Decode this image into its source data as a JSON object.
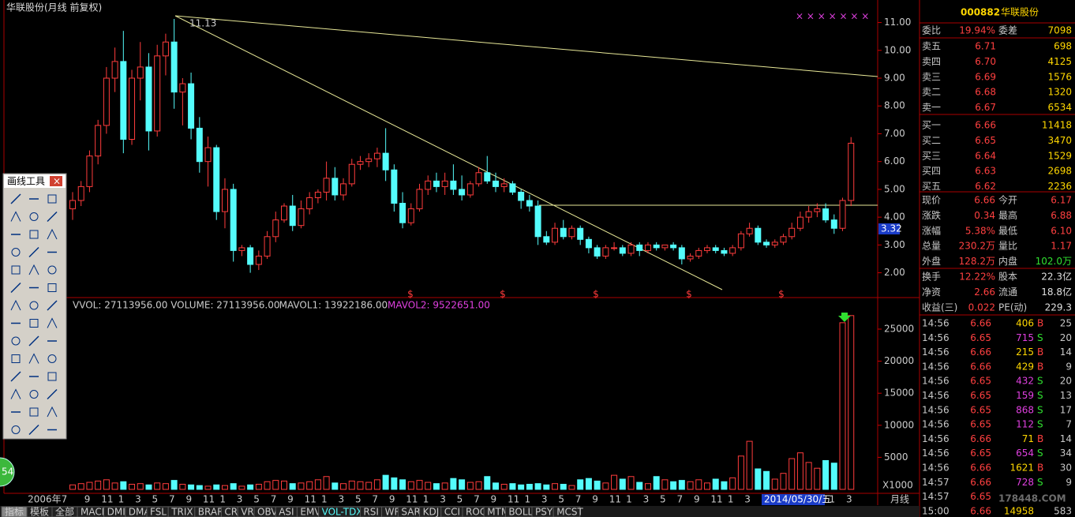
{
  "title": "华联股份(月线 前复权)",
  "chart_data": [
    {
      "type": "candlestick",
      "open": [
        4.3,
        4.6,
        5.1,
        6.2,
        7.3,
        9.0,
        9.6,
        6.8,
        9.0,
        9.4,
        7.1,
        9.8,
        10.3,
        8.5,
        8.8,
        7.2,
        6.0,
        6.5,
        4.2,
        5.0,
        2.8,
        2.9,
        2.3,
        2.6,
        3.3,
        3.9,
        4.4,
        3.7,
        4.3,
        4.7,
        4.9,
        5.4,
        4.8,
        5.2,
        5.9,
        6.0,
        6.1,
        6.3,
        5.7,
        4.5,
        3.8,
        4.3,
        5.0,
        5.3,
        5.1,
        5.3,
        5.0,
        4.8,
        5.2,
        5.6,
        5.3,
        5.1,
        5.2,
        4.9,
        4.6,
        4.4,
        3.3,
        3.1,
        3.6,
        3.3,
        3.6,
        3.2,
        2.9,
        2.6,
        2.9,
        2.9,
        2.7,
        3.0,
        2.8,
        3.0,
        2.9,
        3.0,
        2.9,
        2.5,
        2.6,
        2.8,
        2.9,
        2.8,
        2.7,
        2.9,
        3.4,
        3.6,
        3.1,
        3.0,
        3.1,
        3.3,
        3.6,
        4.0,
        4.2,
        4.3,
        3.9,
        3.6,
        4.6
      ],
      "high": [
        4.9,
        5.3,
        6.4,
        7.5,
        9.4,
        10.1,
        10.7,
        9.3,
        10.3,
        9.9,
        10.2,
        10.6,
        11.13,
        9.0,
        9.2,
        7.6,
        6.9,
        6.6,
        5.4,
        5.2,
        3.0,
        3.0,
        2.8,
        3.5,
        4.2,
        4.5,
        4.8,
        4.6,
        4.9,
        5.0,
        6.0,
        5.8,
        5.4,
        6.1,
        6.2,
        6.3,
        6.5,
        7.2,
        5.9,
        4.9,
        4.5,
        5.2,
        5.5,
        5.6,
        5.6,
        5.9,
        5.5,
        5.3,
        5.8,
        6.2,
        5.6,
        5.4,
        5.3,
        5.0,
        4.8,
        4.6,
        3.5,
        3.8,
        3.9,
        3.7,
        3.7,
        3.3,
        3.0,
        3.0,
        3.1,
        3.0,
        3.1,
        3.1,
        3.1,
        3.1,
        3.0,
        3.1,
        3.0,
        2.7,
        2.9,
        3.0,
        3.0,
        2.9,
        3.0,
        3.5,
        3.8,
        3.7,
        3.2,
        3.2,
        3.4,
        3.8,
        4.2,
        4.4,
        4.5,
        4.5,
        4.1,
        4.7,
        6.88
      ],
      "low": [
        3.9,
        4.4,
        4.9,
        5.9,
        7.0,
        8.5,
        6.3,
        6.6,
        8.2,
        6.4,
        6.9,
        9.1,
        7.9,
        7.3,
        6.8,
        5.6,
        5.1,
        3.9,
        3.6,
        2.4,
        2.6,
        2.0,
        2.1,
        2.5,
        3.1,
        3.8,
        3.5,
        3.6,
        4.1,
        4.5,
        4.6,
        4.6,
        4.6,
        5.1,
        5.7,
        5.8,
        5.8,
        5.3,
        4.2,
        3.6,
        3.7,
        4.2,
        4.8,
        4.9,
        4.8,
        4.8,
        4.6,
        4.7,
        5.1,
        5.2,
        4.9,
        4.9,
        4.8,
        4.3,
        4.2,
        3.0,
        3.0,
        3.0,
        3.2,
        3.2,
        3.0,
        2.7,
        2.5,
        2.5,
        2.8,
        2.6,
        2.6,
        2.6,
        2.7,
        2.8,
        2.8,
        2.8,
        2.3,
        2.4,
        2.5,
        2.7,
        2.7,
        2.6,
        2.6,
        2.8,
        3.3,
        3.0,
        2.9,
        2.9,
        3.0,
        3.2,
        3.5,
        3.8,
        4.0,
        3.8,
        3.4,
        3.5,
        4.4
      ],
      "close": [
        4.6,
        5.1,
        6.2,
        7.3,
        9.0,
        9.6,
        6.8,
        9.0,
        9.4,
        7.1,
        9.8,
        10.3,
        8.5,
        8.8,
        7.2,
        6.0,
        6.5,
        4.2,
        5.0,
        2.8,
        2.9,
        2.3,
        2.6,
        3.3,
        3.9,
        4.4,
        3.7,
        4.3,
        4.7,
        4.9,
        5.4,
        4.8,
        5.2,
        5.9,
        6.0,
        6.1,
        6.3,
        5.7,
        4.5,
        3.8,
        4.3,
        5.0,
        5.3,
        5.1,
        5.3,
        5.0,
        4.8,
        5.2,
        5.6,
        5.3,
        5.1,
        5.2,
        4.9,
        4.6,
        4.4,
        3.3,
        3.1,
        3.6,
        3.3,
        3.6,
        3.2,
        2.9,
        2.6,
        2.9,
        2.9,
        2.7,
        3.0,
        2.8,
        3.0,
        2.9,
        3.0,
        2.9,
        2.5,
        2.6,
        2.8,
        2.9,
        2.8,
        2.7,
        2.9,
        3.4,
        3.6,
        3.1,
        3.0,
        3.1,
        3.3,
        3.6,
        4.0,
        4.2,
        4.3,
        3.9,
        3.6,
        4.6,
        6.66
      ],
      "up_color": "#ff3c3c",
      "down_color": "#54fcfc",
      "ylim": [
        1.25,
        11.3
      ],
      "yticks": [
        {
          "value": 11,
          "label": "11.00"
        },
        {
          "value": 10,
          "label": "10.00"
        },
        {
          "value": 9,
          "label": "9.00"
        },
        {
          "value": 8,
          "label": "8.00"
        },
        {
          "value": 7,
          "label": "7.00"
        },
        {
          "value": 6,
          "label": "6.00"
        },
        {
          "value": 5,
          "label": "5.00"
        },
        {
          "value": 4,
          "label": "4.00"
        },
        {
          "value": 3,
          "label": "3.00"
        },
        {
          "value": 2,
          "label": "2.00"
        }
      ],
      "annotations": [
        "11.13",
        "3.32"
      ],
      "dividend_marks": [
        "$",
        "$",
        "$",
        "$",
        "$"
      ]
    },
    {
      "type": "volume",
      "indicators": [
        "VVOL: 27113956.00",
        "VOLUME: 27113956.00",
        "MAVOL1: 13922186.00",
        "MAVOL2: 9522651.00"
      ],
      "values": [
        700,
        900,
        1100,
        1300,
        1500,
        1000,
        1200,
        800,
        900,
        700,
        1000,
        900,
        1400,
        800,
        700,
        600,
        500,
        700,
        600,
        900,
        500,
        700,
        800,
        1200,
        1400,
        1300,
        900,
        1000,
        1200,
        1500,
        2000,
        1000,
        900,
        1300,
        1200,
        1100,
        1500,
        2200,
        1800,
        1500,
        1200,
        1400,
        1100,
        900,
        1000,
        1700,
        1500,
        1100,
        1200,
        2000,
        1000,
        800,
        900,
        700,
        800,
        900,
        700,
        900,
        800,
        600,
        1500,
        1700,
        1300,
        1000,
        2200,
        1600,
        2000,
        1100,
        900,
        2000,
        1500,
        1200,
        1400,
        1200,
        1500,
        1000,
        1600,
        1200,
        1800,
        5200,
        7500,
        3200,
        2800,
        1600,
        2500,
        4800,
        5700,
        4200,
        3300,
        4500,
        4100,
        26000,
        27113.956
      ],
      "ylim": [
        0,
        29000
      ],
      "yticks": [
        25000,
        20000,
        15000,
        10000,
        5000
      ],
      "unit": "X1000"
    }
  ],
  "xlabels": [
    "2006年7",
    "9",
    "11",
    "1",
    "3",
    "5",
    "7",
    "9",
    "11",
    "1",
    "3",
    "5",
    "7",
    "9",
    "11",
    "1",
    "3",
    "5",
    "7",
    "9",
    "11",
    "1",
    "3",
    "5",
    "7",
    "9",
    "11",
    "1",
    "3",
    "5",
    "7",
    "9",
    "11",
    "1",
    "3",
    "5",
    "7",
    "9",
    "11",
    "1",
    "3",
    "5",
    "7",
    "9",
    "11",
    "1",
    "3"
  ],
  "date_box": "2014/05/30/五",
  "period": "月线",
  "top_marks": "× × × × × × ×",
  "badge": "54",
  "quote": {
    "code": "000882",
    "name": "华联股份",
    "ratio": [
      "委比",
      "19.94%",
      "委差",
      "7098"
    ],
    "book": [
      [
        "卖五",
        "6.71",
        "698"
      ],
      [
        "卖四",
        "6.70",
        "4125"
      ],
      [
        "卖三",
        "6.69",
        "1576"
      ],
      [
        "卖二",
        "6.68",
        "1320"
      ],
      [
        "卖一",
        "6.67",
        "6534"
      ],
      [
        "买一",
        "6.66",
        "11418"
      ],
      [
        "买二",
        "6.65",
        "3470"
      ],
      [
        "买三",
        "6.64",
        "1529"
      ],
      [
        "买四",
        "6.63",
        "2698"
      ],
      [
        "买五",
        "6.62",
        "2236"
      ]
    ],
    "stats": [
      [
        "现价",
        "6.66",
        "今开",
        "6.17"
      ],
      [
        "涨跌",
        "0.34",
        "最高",
        "6.88"
      ],
      [
        "涨幅",
        "5.38%",
        "最低",
        "6.10"
      ],
      [
        "总量",
        "230.2万",
        "量比",
        "1.17"
      ],
      [
        "外盘",
        "128.2万",
        "内盘",
        "102.0万"
      ]
    ],
    "info": [
      [
        "换手",
        "12.22%",
        "股本",
        "22.3亿"
      ],
      [
        "净资",
        "2.66",
        "流通",
        "18.8亿"
      ],
      [
        "收益(三)",
        "0.022",
        "PE(动)",
        "229.3"
      ]
    ]
  },
  "ticks": [
    [
      "14:56",
      "6.66",
      "406",
      "B",
      "25"
    ],
    [
      "14:56",
      "6.65",
      "715",
      "S",
      "20"
    ],
    [
      "14:56",
      "6.66",
      "215",
      "B",
      "14"
    ],
    [
      "14:56",
      "6.66",
      "429",
      "B",
      "9"
    ],
    [
      "14:56",
      "6.65",
      "432",
      "S",
      "20"
    ],
    [
      "14:56",
      "6.65",
      "159",
      "S",
      "13"
    ],
    [
      "14:56",
      "6.65",
      "868",
      "S",
      "17"
    ],
    [
      "14:56",
      "6.65",
      "112",
      "S",
      "7"
    ],
    [
      "14:56",
      "6.66",
      "71",
      "B",
      "14"
    ],
    [
      "14:56",
      "6.65",
      "654",
      "S",
      "34"
    ],
    [
      "14:56",
      "6.66",
      "1621",
      "B",
      "30"
    ],
    [
      "14:57",
      "6.66",
      "728",
      "S",
      "9"
    ],
    [
      "14:57",
      "6.65",
      "",
      "",
      ""
    ],
    [
      "15:00",
      "6.66",
      "14958",
      "",
      "583"
    ]
  ],
  "watermark": "178448.COM",
  "tabs": [
    "指标",
    "模板",
    "全部",
    "MACD",
    "DMI",
    "DMA",
    "FSL",
    "TRIX",
    "BRAR",
    "CR",
    "VR",
    "OBV",
    "ASI",
    "EMV",
    "VOL-TDX",
    "RSI",
    "WR",
    "SAR",
    "KDJ",
    "CCI",
    "ROC",
    "MTM",
    "BOLL",
    "PSY",
    "MCST"
  ],
  "toolbox": {
    "title": "画线工具"
  }
}
